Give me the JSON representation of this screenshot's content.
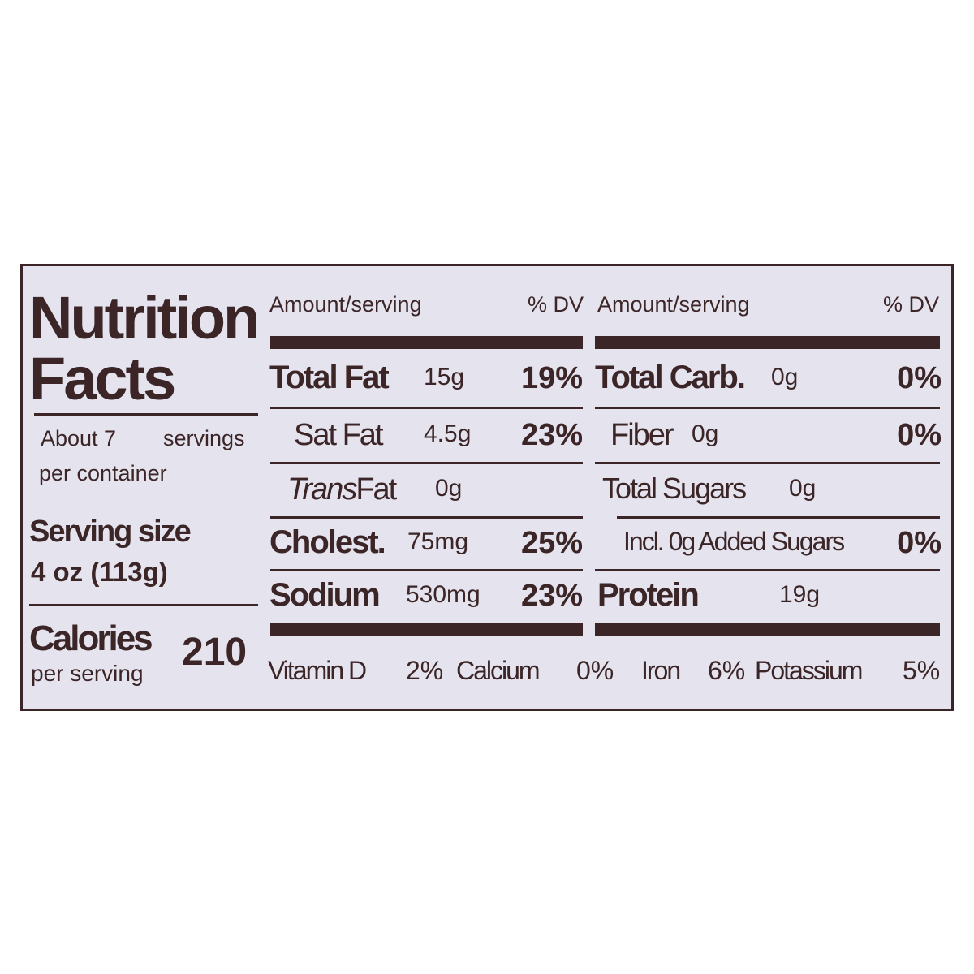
{
  "title_line1": "Nutrition",
  "title_line2": "Facts",
  "servings_count": "About 7",
  "servings_word": "servings",
  "servings_suffix": "per container",
  "serving_size_label": "Serving size",
  "serving_size_value": "4 oz (113g)",
  "calories_label": "Calories",
  "calories_sub": "per serving",
  "calories_value": "210",
  "header": {
    "amount": "Amount/serving",
    "dv": "% DV"
  },
  "left_rows": [
    {
      "name": "Total Fat",
      "amount": "15g",
      "dv": "19%"
    },
    {
      "name": "Sat Fat",
      "amount": "4.5g",
      "dv": "23%"
    },
    {
      "name_italic": "Trans",
      "name": "Fat",
      "amount": "0g",
      "dv": ""
    },
    {
      "name": "Cholest.",
      "amount": "75mg",
      "dv": "25%"
    },
    {
      "name": "Sodium",
      "amount": "530mg",
      "dv": "23%"
    }
  ],
  "right_rows": [
    {
      "name": "Total Carb.",
      "amount": "0g",
      "dv": "0%"
    },
    {
      "name": "Fiber",
      "amount": "0g",
      "dv": "0%"
    },
    {
      "name": "Total Sugars",
      "amount": "0g",
      "dv": ""
    },
    {
      "name": "Incl. 0g Added Sugars",
      "amount": "",
      "dv": "0%"
    },
    {
      "name": "Protein",
      "amount": "19g",
      "dv": ""
    }
  ],
  "vitamins": [
    {
      "name": "Vitamin D",
      "dv": "2%"
    },
    {
      "name": "Calcium",
      "dv": "0%"
    },
    {
      "name": "Iron",
      "dv": "6%"
    },
    {
      "name": "Potassium",
      "dv": "5%"
    }
  ],
  "colors": {
    "ink": "#3b2526",
    "panel": "#e4e3ee"
  }
}
